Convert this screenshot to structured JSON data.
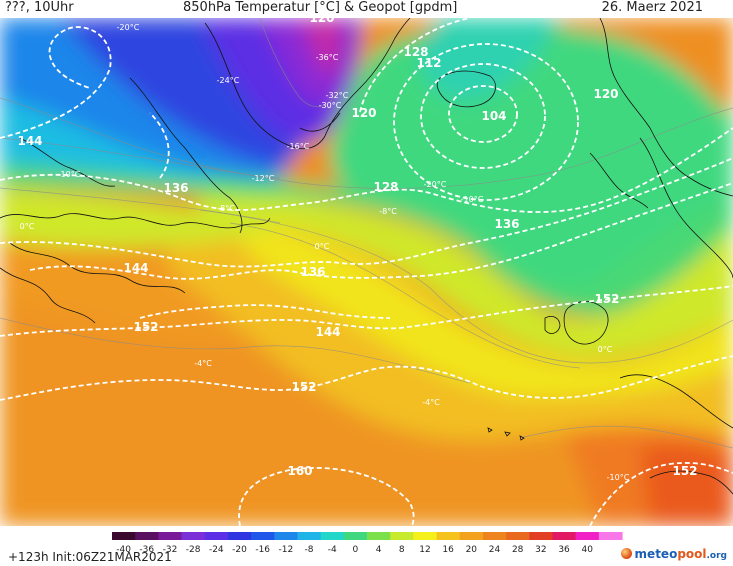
{
  "header": {
    "left": "???, 10Uhr",
    "title": "850hPa Temperatur [°C] & Geopot [gpdm]",
    "date": "26. Maerz 2021"
  },
  "footer": {
    "run": "+123h  Init:06Z21MAR2021",
    "brand_a": "meteo",
    "brand_b": "pool",
    "brand_c": ".org"
  },
  "legend": {
    "ticks": [
      "-40",
      "-36",
      "-32",
      "-28",
      "-24",
      "-20",
      "-16",
      "-12",
      "-8",
      "-4",
      "0",
      "4",
      "8",
      "12",
      "16",
      "20",
      "24",
      "28",
      "32",
      "36",
      "40"
    ],
    "colors": [
      "#3a0a2e",
      "#5a1060",
      "#7a1a9a",
      "#7b2fd6",
      "#5c2ee6",
      "#2f35e0",
      "#1f58e8",
      "#1f86ea",
      "#1fb4e8",
      "#22d6c9",
      "#3fd87f",
      "#7be04a",
      "#c8ea2e",
      "#f5ef1a",
      "#f6c21e",
      "#f2a21e",
      "#ee8420",
      "#e96a1e",
      "#e23e24",
      "#e21a66",
      "#f01fc6",
      "#f878ea"
    ]
  },
  "geopot_labels": [
    "144",
    "136",
    "128",
    "120",
    "112",
    "104",
    "120",
    "128",
    "136",
    "144",
    "136",
    "152",
    "144",
    "152",
    "152",
    "160",
    "152",
    "120"
  ],
  "temp_labels": [
    "-20°C",
    "-36°C",
    "-32°C",
    "-30°C",
    "-24°C",
    "-10°C",
    "-16°C",
    "-12°C",
    "-8°C",
    "0°C",
    "0°C",
    "-4°C",
    "-4°C",
    "-10°C",
    "-20°C",
    "-8°C",
    "-10°C",
    "0°C"
  ]
}
